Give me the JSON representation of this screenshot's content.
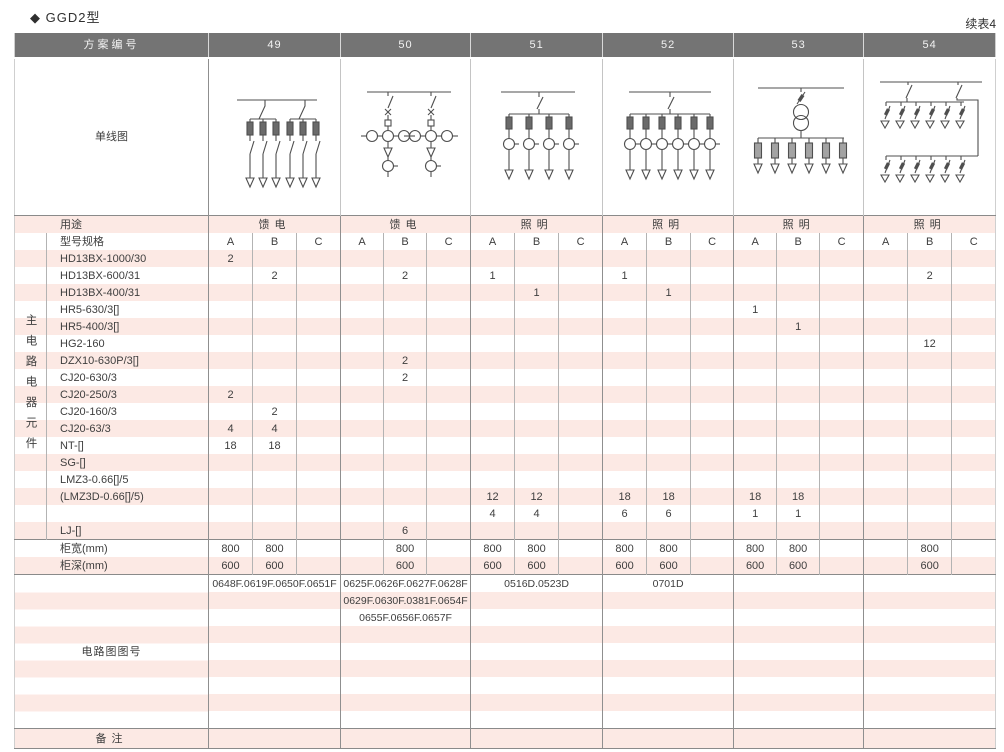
{
  "page": {
    "title": "◆ GGD2型",
    "continued_note": "续表4"
  },
  "colors": {
    "header_bg": "#747474",
    "header_text": "#f2f2f2",
    "stripe_pink": "#fce9e4",
    "text": "#3e3e3e",
    "grid_line": "#8f8f8f"
  },
  "table": {
    "header": {
      "label": "方案编号",
      "schemes": [
        "49",
        "50",
        "51",
        "52",
        "53",
        "54"
      ]
    },
    "diagram_row_label": "单线图",
    "diagrams": [
      "feeder-two-switch-six-fuse-branches",
      "two-feeder-circuits-with-current-transformers",
      "lighting-four-fuse-ct-branches",
      "lighting-six-fuse-ct-branches",
      "lighting-transformer-six-fuse-branches",
      "lighting-two-groups-of-six-breaker-branches"
    ],
    "usage_row": {
      "label": "用途",
      "values": [
        "馈电",
        "馈电",
        "照明",
        "照明",
        "照明",
        "照明"
      ]
    },
    "spec_row": {
      "label": "型号规格",
      "subcols": [
        "A",
        "B",
        "C"
      ]
    },
    "side_label": "主电路电器元件",
    "component_rows": [
      {
        "label": "HD13BX-1000/30",
        "values": [
          "2",
          "",
          "",
          "",
          "",
          "",
          "",
          "",
          "",
          "",
          "",
          "",
          "",
          "",
          "",
          "",
          "",
          ""
        ]
      },
      {
        "label": "HD13BX-600/31",
        "values": [
          "",
          "2",
          "",
          "",
          "2",
          "",
          "1",
          "",
          "",
          "1",
          "",
          "",
          "",
          "",
          "",
          "",
          "2",
          ""
        ]
      },
      {
        "label": "HD13BX-400/31",
        "values": [
          "",
          "",
          "",
          "",
          "",
          "",
          "",
          "1",
          "",
          "",
          "1",
          "",
          "",
          "",
          "",
          "",
          "",
          ""
        ]
      },
      {
        "label": "HR5-630/3[]",
        "values": [
          "",
          "",
          "",
          "",
          "",
          "",
          "",
          "",
          "",
          "",
          "",
          "",
          "1",
          "",
          "",
          "",
          "",
          ""
        ]
      },
      {
        "label": "HR5-400/3[]",
        "values": [
          "",
          "",
          "",
          "",
          "",
          "",
          "",
          "",
          "",
          "",
          "",
          "",
          "",
          "1",
          "",
          "",
          "",
          ""
        ]
      },
      {
        "label": "HG2-160",
        "values": [
          "",
          "",
          "",
          "",
          "",
          "",
          "",
          "",
          "",
          "",
          "",
          "",
          "",
          "",
          "",
          "",
          "12",
          ""
        ]
      },
      {
        "label": "DZX10-630P/3[]",
        "values": [
          "",
          "",
          "",
          "",
          "2",
          "",
          "",
          "",
          "",
          "",
          "",
          "",
          "",
          "",
          "",
          "",
          "",
          ""
        ]
      },
      {
        "label": "CJ20-630/3",
        "values": [
          "",
          "",
          "",
          "",
          "2",
          "",
          "",
          "",
          "",
          "",
          "",
          "",
          "",
          "",
          "",
          "",
          "",
          ""
        ]
      },
      {
        "label": "CJ20-250/3",
        "values": [
          "2",
          "",
          "",
          "",
          "",
          "",
          "",
          "",
          "",
          "",
          "",
          "",
          "",
          "",
          "",
          "",
          "",
          ""
        ]
      },
      {
        "label": "CJ20-160/3",
        "values": [
          "",
          "2",
          "",
          "",
          "",
          "",
          "",
          "",
          "",
          "",
          "",
          "",
          "",
          "",
          "",
          "",
          "",
          ""
        ]
      },
      {
        "label": "CJ20-63/3",
        "values": [
          "4",
          "4",
          "",
          "",
          "",
          "",
          "",
          "",
          "",
          "",
          "",
          "",
          "",
          "",
          "",
          "",
          "",
          ""
        ]
      },
      {
        "label": "NT-[]",
        "values": [
          "18",
          "18",
          "",
          "",
          "",
          "",
          "",
          "",
          "",
          "",
          "",
          "",
          "",
          "",
          "",
          "",
          "",
          ""
        ]
      },
      {
        "label": "SG-[]",
        "values": [
          "",
          "",
          "",
          "",
          "",
          "",
          "",
          "",
          "",
          "",
          "",
          "",
          "",
          "",
          "",
          "",
          "",
          ""
        ]
      },
      {
        "label": "LMZ3-0.66[]/5",
        "values": [
          "",
          "",
          "",
          "",
          "",
          "",
          "",
          "",
          "",
          "",
          "",
          "",
          "",
          "",
          "",
          "",
          "",
          ""
        ]
      },
      {
        "label": "(LMZ3D-0.66[]/5)",
        "values": [
          "",
          "",
          "",
          "",
          "",
          "",
          "12",
          "12",
          "",
          "18",
          "18",
          "",
          "18",
          "18",
          "",
          "",
          "",
          ""
        ]
      },
      {
        "label": "",
        "values": [
          "",
          "",
          "",
          "",
          "",
          "",
          "4",
          "4",
          "",
          "6",
          "6",
          "",
          "1",
          "1",
          "",
          "",
          "",
          ""
        ]
      },
      {
        "label": "LJ-[]",
        "values": [
          "",
          "",
          "",
          "",
          "6",
          "",
          "",
          "",
          "",
          "",
          "",
          "",
          "",
          "",
          "",
          "",
          "",
          ""
        ]
      }
    ],
    "width_row": {
      "label": "柜宽(mm)",
      "values": [
        "800",
        "800",
        "",
        "",
        "800",
        "",
        "800",
        "800",
        "",
        "800",
        "800",
        "",
        "800",
        "800",
        "",
        "",
        "800",
        ""
      ]
    },
    "depth_row": {
      "label": "柜深(mm)",
      "values": [
        "600",
        "600",
        "",
        "",
        "600",
        "",
        "600",
        "600",
        "",
        "600",
        "600",
        "",
        "600",
        "600",
        "",
        "",
        "600",
        ""
      ]
    },
    "circuit_no": {
      "label": "电路图图号",
      "rows": [
        [
          "0648F.0619F.0650F.0651F",
          "0625F.0626F.0627F.0628F",
          "0516D.0523D",
          "0701D",
          "",
          ""
        ],
        [
          "",
          "0629F.0630F.0381F.0654F",
          "",
          "",
          "",
          ""
        ],
        [
          "",
          "0655F.0656F.0657F",
          "",
          "",
          "",
          ""
        ],
        [
          "",
          "",
          "",
          "",
          "",
          ""
        ],
        [
          "",
          "",
          "",
          "",
          "",
          ""
        ],
        [
          "",
          "",
          "",
          "",
          "",
          ""
        ],
        [
          "",
          "",
          "",
          "",
          "",
          ""
        ],
        [
          "",
          "",
          "",
          "",
          "",
          ""
        ],
        [
          "",
          "",
          "",
          "",
          "",
          ""
        ]
      ]
    },
    "remark_row": {
      "label": "备注"
    }
  }
}
